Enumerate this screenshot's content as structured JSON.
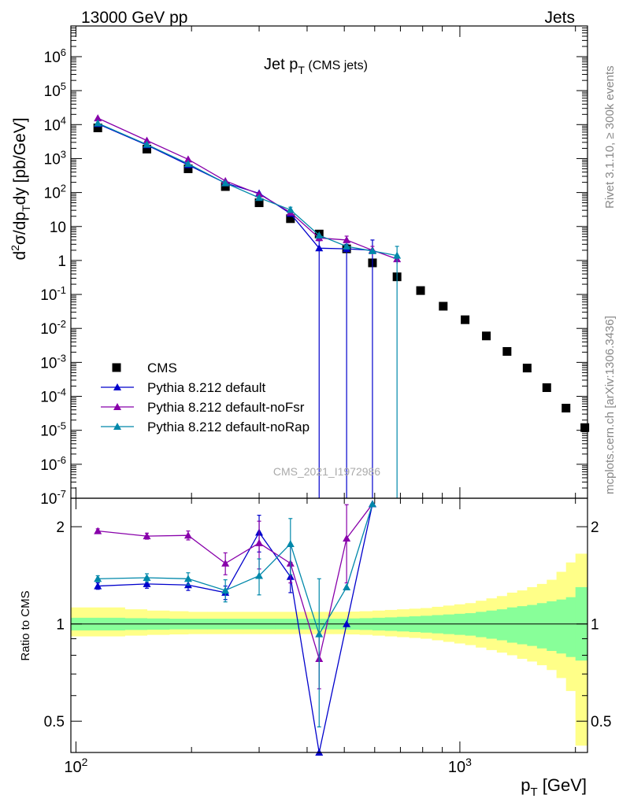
{
  "header": {
    "left": "13000 GeV pp",
    "right": "Jets"
  },
  "side_labels": {
    "rivet": "Rivet 3.1.10, ≥ 300k events",
    "mcplots": "mcplots.cern.ch [arXiv:1306.3436]"
  },
  "watermark": "CMS_2021_I1972986",
  "chart_data": [
    {
      "type": "scatter",
      "title": "Jet p_T (CMS jets)",
      "ylabel": "d²σ/dp_T dy [pb/GeV]",
      "xlabel": "p_T [GeV]",
      "xscale": "log",
      "yscale": "log",
      "xlim": [
        97,
        2150
      ],
      "ylim": [
        1e-07,
        8000000.0
      ],
      "x_tick_labels": [
        "10²",
        "10³"
      ],
      "y_tick_labels": [
        "10⁻⁷",
        "10⁻⁶",
        "10⁻⁵",
        "10⁻⁴",
        "10⁻³",
        "10⁻²",
        "10⁻¹",
        "1",
        "10",
        "10²",
        "10³",
        "10⁴",
        "10⁵",
        "10⁶"
      ],
      "legend_position": "bottom-left",
      "series": [
        {
          "name": "CMS",
          "color": "#000000",
          "marker": "square",
          "x": [
            114,
            153,
            196,
            245,
            300,
            362,
            430,
            507,
            592,
            686,
            790,
            905,
            1032,
            1172,
            1327,
            1497,
            1684,
            1890,
            2116
          ],
          "y": [
            8000,
            1900,
            500,
            150,
            50,
            17,
            6.0,
            2.2,
            0.85,
            0.33,
            0.13,
            0.045,
            0.018,
            0.006,
            0.0021,
            0.00068,
            0.00018,
            4.5e-05,
            1.2e-05
          ],
          "yerr_low": [],
          "yerr_high": []
        },
        {
          "name": "Pythia 8.212 default",
          "color": "#0000cc",
          "marker": "triangle",
          "x": [
            114,
            153,
            196,
            245,
            300,
            362,
            430,
            507,
            592
          ],
          "y": [
            10500,
            2500,
            650,
            190,
            95,
            24,
            2.3,
            2.2,
            2.0
          ],
          "yerr_low": [
            0,
            0,
            0,
            0,
            0,
            0,
            2.3,
            2.2,
            2.0
          ],
          "yerr_high": [
            0,
            0,
            0,
            0,
            0,
            0,
            1.5,
            0.8,
            2.0
          ]
        },
        {
          "name": "Pythia 8.212 default-noFsr",
          "color": "#8800aa",
          "marker": "triangle",
          "x": [
            114,
            153,
            196,
            245,
            300,
            362,
            430,
            507,
            592,
            686
          ],
          "y": [
            15500,
            3400,
            950,
            220,
            90,
            26,
            4.6,
            4.0,
            2.0,
            1.1
          ],
          "yerr_low": [
            0,
            0,
            0,
            0,
            0,
            0,
            0,
            1.2,
            0.6,
            0.3
          ],
          "yerr_high": [
            0,
            0,
            0,
            0,
            0,
            0,
            0,
            1.2,
            0.6,
            0.3
          ]
        },
        {
          "name": "Pythia 8.212 default-noRap",
          "color": "#0088aa",
          "marker": "triangle",
          "x": [
            114,
            153,
            196,
            245,
            300,
            362,
            430,
            507,
            592,
            686
          ],
          "y": [
            11000,
            2600,
            700,
            190,
            70,
            31,
            5.5,
            2.6,
            1.9,
            1.4
          ],
          "yerr_low": [
            0,
            0,
            0,
            0,
            0,
            0,
            0,
            0,
            0,
            1.4
          ],
          "yerr_high": [
            0,
            0,
            0,
            0,
            0,
            6,
            0,
            0,
            0,
            1.2
          ]
        }
      ]
    },
    {
      "type": "line",
      "ylabel": "Ratio to CMS",
      "yscale": "log",
      "ylim": [
        0.4,
        2.45
      ],
      "y_tick_labels": [
        "0.5",
        "1",
        "2"
      ],
      "band_edges": [
        97,
        114,
        134,
        153,
        175,
        196,
        220,
        245,
        272,
        300,
        330,
        362,
        395,
        430,
        468,
        507,
        548,
        592,
        638,
        686,
        738,
        790,
        846,
        905,
        967,
        1032,
        1100,
        1172,
        1248,
        1327,
        1410,
        1497,
        1588,
        1684,
        1785,
        1890,
        2000,
        2116,
        2150
      ],
      "band_inner": [
        [
          0.955,
          1.045
        ],
        [
          0.955,
          1.045
        ],
        [
          0.958,
          1.042
        ],
        [
          0.96,
          1.04
        ],
        [
          0.962,
          1.038
        ],
        [
          0.962,
          1.038
        ],
        [
          0.962,
          1.038
        ],
        [
          0.962,
          1.038
        ],
        [
          0.962,
          1.038
        ],
        [
          0.962,
          1.038
        ],
        [
          0.962,
          1.038
        ],
        [
          0.962,
          1.038
        ],
        [
          0.962,
          1.038
        ],
        [
          0.962,
          1.038
        ],
        [
          0.962,
          1.038
        ],
        [
          0.96,
          1.04
        ],
        [
          0.958,
          1.042
        ],
        [
          0.955,
          1.045
        ],
        [
          0.952,
          1.048
        ],
        [
          0.948,
          1.052
        ],
        [
          0.944,
          1.056
        ],
        [
          0.94,
          1.06
        ],
        [
          0.935,
          1.065
        ],
        [
          0.93,
          1.07
        ],
        [
          0.925,
          1.075
        ],
        [
          0.92,
          1.08
        ],
        [
          0.91,
          1.09
        ],
        [
          0.9,
          1.1
        ],
        [
          0.89,
          1.11
        ],
        [
          0.875,
          1.125
        ],
        [
          0.865,
          1.135
        ],
        [
          0.855,
          1.145
        ],
        [
          0.84,
          1.16
        ],
        [
          0.825,
          1.175
        ],
        [
          0.81,
          1.19
        ],
        [
          0.79,
          1.21
        ],
        [
          0.77,
          1.3
        ],
        [
          0.77,
          1.3
        ]
      ],
      "band_outer": [
        [
          0.915,
          1.125
        ],
        [
          0.915,
          1.125
        ],
        [
          0.92,
          1.11
        ],
        [
          0.925,
          1.1
        ],
        [
          0.928,
          1.095
        ],
        [
          0.93,
          1.09
        ],
        [
          0.93,
          1.09
        ],
        [
          0.93,
          1.09
        ],
        [
          0.93,
          1.09
        ],
        [
          0.93,
          1.09
        ],
        [
          0.93,
          1.09
        ],
        [
          0.93,
          1.09
        ],
        [
          0.93,
          1.09
        ],
        [
          0.93,
          1.09
        ],
        [
          0.93,
          1.09
        ],
        [
          0.928,
          1.092
        ],
        [
          0.925,
          1.095
        ],
        [
          0.92,
          1.1
        ],
        [
          0.915,
          1.105
        ],
        [
          0.91,
          1.11
        ],
        [
          0.905,
          1.115
        ],
        [
          0.9,
          1.12
        ],
        [
          0.89,
          1.13
        ],
        [
          0.88,
          1.14
        ],
        [
          0.87,
          1.15
        ],
        [
          0.86,
          1.16
        ],
        [
          0.845,
          1.18
        ],
        [
          0.83,
          1.2
        ],
        [
          0.815,
          1.22
        ],
        [
          0.8,
          1.25
        ],
        [
          0.78,
          1.27
        ],
        [
          0.765,
          1.3
        ],
        [
          0.745,
          1.33
        ],
        [
          0.72,
          1.37
        ],
        [
          0.68,
          1.45
        ],
        [
          0.62,
          1.55
        ],
        [
          0.42,
          1.65
        ],
        [
          0.42,
          1.65
        ]
      ],
      "series": [
        {
          "name": "Pythia 8.212 default",
          "color": "#0000cc",
          "x": [
            114,
            153,
            196,
            245,
            300,
            362,
            430,
            507,
            592
          ],
          "y": [
            1.31,
            1.33,
            1.32,
            1.25,
            1.92,
            1.4,
            0.38,
            1.0,
            2.35
          ],
          "yerr": [
            0.03,
            0.04,
            0.05,
            0.06,
            0.25,
            0.15,
            0,
            0,
            0
          ]
        },
        {
          "name": "Pythia 8.212 default-noFsr",
          "color": "#8800aa",
          "x": [
            114,
            153,
            196,
            245,
            300,
            362,
            430,
            507,
            592
          ],
          "y": [
            1.94,
            1.87,
            1.88,
            1.54,
            1.78,
            1.54,
            0.78,
            1.84,
            2.35
          ],
          "yerr": [
            0.03,
            0.04,
            0.06,
            0.12,
            0.3,
            0.2,
            0.15,
            0.5,
            0
          ]
        },
        {
          "name": "Pythia 8.212 default-noRap",
          "color": "#0088aa",
          "x": [
            114,
            153,
            196,
            245,
            300,
            362,
            430,
            507,
            592
          ],
          "y": [
            1.38,
            1.39,
            1.38,
            1.27,
            1.41,
            1.77,
            0.93,
            1.3,
            2.35
          ],
          "yerr": [
            0.03,
            0.04,
            0.06,
            0.1,
            0.18,
            0.35,
            0.45,
            0,
            0
          ]
        }
      ]
    }
  ]
}
